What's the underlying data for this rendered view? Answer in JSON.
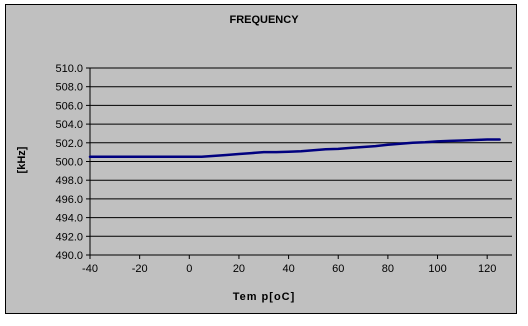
{
  "chart_data": {
    "type": "line",
    "title": "FREQUENCY",
    "xlabel": "Tem p[oC]",
    "ylabel": "[kHz]",
    "xlim": [
      -40,
      130
    ],
    "ylim": [
      490.0,
      510.0
    ],
    "x_ticks": [
      "-40",
      "-20",
      "0",
      "20",
      "40",
      "60",
      "80",
      "100",
      "120"
    ],
    "y_ticks": [
      "510.0",
      "508.0",
      "506.0",
      "504.0",
      "502.0",
      "500.0",
      "498.0",
      "496.0",
      "494.0",
      "492.0",
      "490.0"
    ],
    "grid": "horizontal",
    "colors": {
      "plot_bg": "#c0c0c0",
      "line": "#00007f",
      "grid": "#000000"
    },
    "series": [
      {
        "x": [
          -40,
          -30,
          -20,
          -10,
          0,
          5,
          10,
          15,
          20,
          25,
          30,
          35,
          40,
          45,
          50,
          55,
          60,
          65,
          70,
          75,
          80,
          85,
          90,
          95,
          100,
          105,
          110,
          115,
          120,
          125
        ],
        "values": [
          500.5,
          500.5,
          500.5,
          500.5,
          500.5,
          500.5,
          500.6,
          500.7,
          500.8,
          500.9,
          501.0,
          501.0,
          501.05,
          501.1,
          501.2,
          501.3,
          501.35,
          501.45,
          501.55,
          501.65,
          501.8,
          501.9,
          502.0,
          502.05,
          502.15,
          502.2,
          502.25,
          502.3,
          502.35,
          502.35
        ]
      }
    ]
  }
}
